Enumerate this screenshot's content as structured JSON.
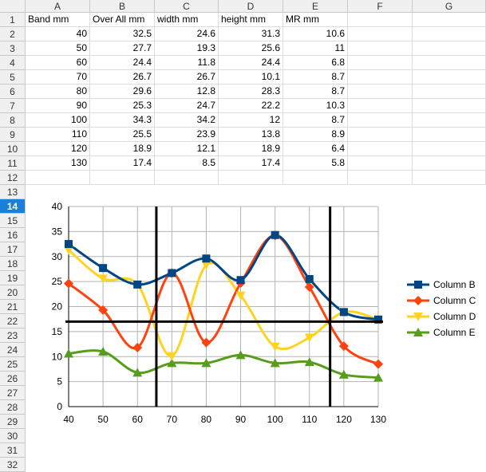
{
  "sheet": {
    "columns": [
      "A",
      "B",
      "C",
      "D",
      "E",
      "F",
      "G"
    ],
    "row_numbers": [
      "1",
      "2",
      "3",
      "4",
      "5",
      "6",
      "7",
      "8",
      "9",
      "10",
      "11",
      "12",
      "13",
      "14",
      "15",
      "16",
      "17",
      "18",
      "19",
      "20",
      "21",
      "22",
      "23",
      "24",
      "25",
      "26",
      "27",
      "28",
      "29",
      "30",
      "31",
      "32"
    ],
    "active_row": "14",
    "headers": [
      "Band mm",
      "Over All mm",
      "width mm",
      "height mm",
      "MR mm"
    ],
    "rows": [
      [
        "40",
        "32.5",
        "24.6",
        "31.3",
        "10.6"
      ],
      [
        "50",
        "27.7",
        "19.3",
        "25.6",
        "11"
      ],
      [
        "60",
        "24.4",
        "11.8",
        "24.4",
        "6.8"
      ],
      [
        "70",
        "26.7",
        "26.7",
        "10.1",
        "8.7"
      ],
      [
        "80",
        "29.6",
        "12.8",
        "28.3",
        "8.7"
      ],
      [
        "90",
        "25.3",
        "24.7",
        "22.2",
        "10.3"
      ],
      [
        "100",
        "34.3",
        "34.2",
        "12",
        "8.7"
      ],
      [
        "110",
        "25.5",
        "23.9",
        "13.8",
        "8.9"
      ],
      [
        "120",
        "18.9",
        "12.1",
        "18.9",
        "6.4"
      ],
      [
        "130",
        "17.4",
        "8.5",
        "17.4",
        "5.8"
      ]
    ]
  },
  "chart_data": {
    "type": "line",
    "x": [
      40,
      50,
      60,
      70,
      80,
      90,
      100,
      110,
      120,
      130
    ],
    "x_ticks": [
      "40",
      "50",
      "60",
      "70",
      "80",
      "90",
      "100",
      "110",
      "120",
      "130"
    ],
    "ylim": [
      0,
      40
    ],
    "y_ticks": [
      "0",
      "5",
      "10",
      "15",
      "20",
      "25",
      "30",
      "35",
      "40"
    ],
    "grid": true,
    "legend_position": "right",
    "series": [
      {
        "name": "Column B",
        "values": [
          32.5,
          27.7,
          24.4,
          26.7,
          29.6,
          25.3,
          34.3,
          25.5,
          18.9,
          17.4
        ],
        "color": "#004586",
        "marker": "square"
      },
      {
        "name": "Column C",
        "values": [
          24.6,
          19.3,
          11.8,
          26.7,
          12.8,
          24.7,
          34.2,
          23.9,
          12.1,
          8.5
        ],
        "color": "#ff420e",
        "marker": "diamond"
      },
      {
        "name": "Column D",
        "values": [
          31.3,
          25.6,
          24.4,
          10.1,
          28.3,
          22.2,
          12,
          13.8,
          18.9,
          17.4
        ],
        "color": "#ffd320",
        "marker": "triangle-down"
      },
      {
        "name": "Column E",
        "values": [
          10.6,
          11,
          6.8,
          8.7,
          8.7,
          10.3,
          8.7,
          8.9,
          6.4,
          5.8
        ],
        "color": "#579d1c",
        "marker": "triangle-up"
      }
    ],
    "reference_lines": {
      "horizontal_y": 17,
      "vertical_x": [
        65.5,
        116
      ]
    }
  }
}
